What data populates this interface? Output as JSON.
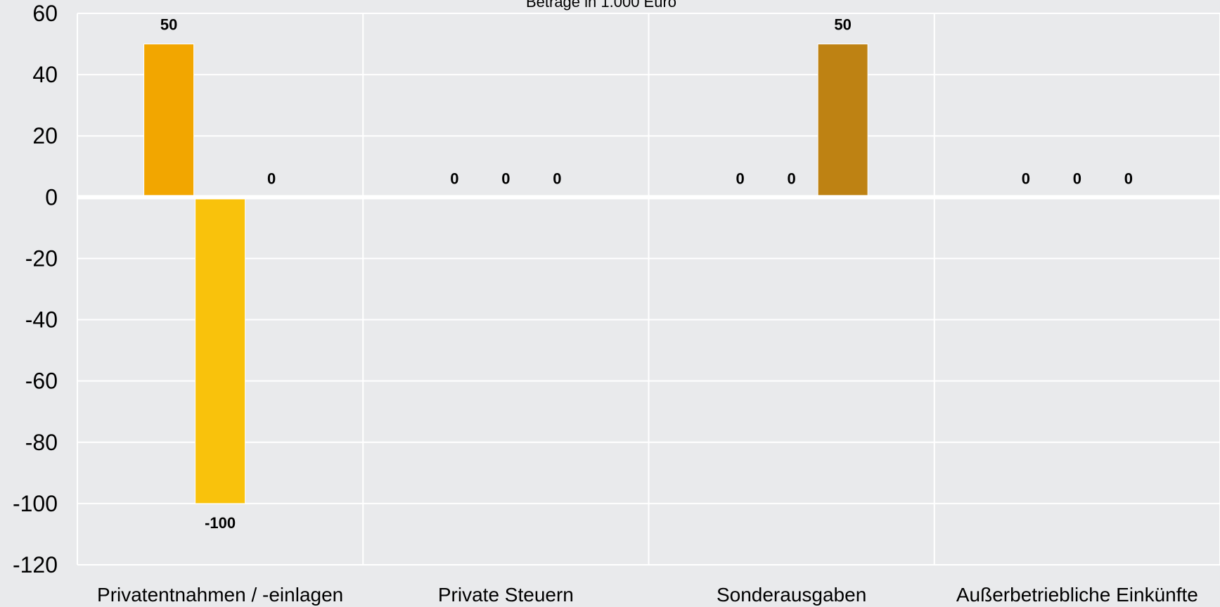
{
  "chart_data": {
    "type": "bar",
    "subtitle": "Beträge in 1.000 Euro",
    "categories": [
      "Privatentnahmen / -einlagen",
      "Private Steuern",
      "Sonderausgaben",
      "Außerbetriebliche Einkünfte"
    ],
    "series": [
      {
        "color": "#f2a600",
        "values": [
          50,
          0,
          0,
          0
        ]
      },
      {
        "color": "#f9c20c",
        "values": [
          -100,
          0,
          0,
          0
        ]
      },
      {
        "color": "#be8213",
        "values": [
          0,
          0,
          50,
          0
        ]
      }
    ],
    "data_labels": [
      [
        "50",
        "-100",
        "0"
      ],
      [
        "0",
        "0",
        "0"
      ],
      [
        "0",
        "0",
        "50"
      ],
      [
        "0",
        "0",
        "0"
      ]
    ],
    "yticks": [
      "60",
      "40",
      "20",
      "0",
      "-20",
      "-40",
      "-60",
      "-80",
      "-100",
      "-120"
    ],
    "ylim": [
      -120,
      60
    ],
    "grid": true,
    "legend": "none"
  }
}
